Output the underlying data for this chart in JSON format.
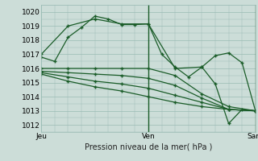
{
  "xlabel": "Pression niveau de la mer( hPa )",
  "ylim": [
    1011.5,
    1020.5
  ],
  "xlim": [
    0,
    48
  ],
  "xtick_positions": [
    0,
    24,
    48
  ],
  "xtick_labels": [
    "Jeu",
    "Ven",
    "Sam"
  ],
  "ytick_positions": [
    1012,
    1013,
    1014,
    1015,
    1016,
    1017,
    1018,
    1019,
    1020
  ],
  "bg_color": "#ccddd8",
  "grid_color": "#99bbb4",
  "line_color": "#1a5c28",
  "lines": [
    {
      "x": [
        0,
        3,
        6,
        9,
        12,
        15,
        18,
        21,
        24,
        27,
        30,
        33,
        36,
        39,
        42,
        45,
        48
      ],
      "y": [
        1016.8,
        1016.5,
        1018.2,
        1018.9,
        1019.7,
        1019.5,
        1019.1,
        1019.1,
        1019.15,
        1017.0,
        1016.1,
        1015.4,
        1016.1,
        1014.9,
        1012.1,
        1013.1,
        1013.0
      ],
      "marker": "+"
    },
    {
      "x": [
        0,
        6,
        12,
        18,
        24,
        30,
        36,
        39,
        42,
        45,
        48
      ],
      "y": [
        1017.0,
        1019.0,
        1019.5,
        1019.15,
        1019.15,
        1016.0,
        1016.1,
        1016.9,
        1017.1,
        1016.4,
        1013.0
      ],
      "marker": "+"
    },
    {
      "x": [
        0,
        6,
        12,
        18,
        24,
        30,
        36,
        42,
        48
      ],
      "y": [
        1016.0,
        1016.0,
        1016.0,
        1016.0,
        1016.0,
        1015.5,
        1014.2,
        1013.3,
        1013.0
      ],
      "marker": "+"
    },
    {
      "x": [
        0,
        6,
        12,
        18,
        24,
        30,
        36,
        42,
        48
      ],
      "y": [
        1015.8,
        1015.7,
        1015.6,
        1015.5,
        1015.3,
        1014.8,
        1013.9,
        1013.1,
        1013.0
      ],
      "marker": "+"
    },
    {
      "x": [
        0,
        6,
        12,
        18,
        24,
        30,
        36,
        42,
        48
      ],
      "y": [
        1015.7,
        1015.4,
        1015.1,
        1014.9,
        1014.6,
        1014.1,
        1013.6,
        1013.1,
        1013.0
      ],
      "marker": "+"
    },
    {
      "x": [
        0,
        6,
        12,
        18,
        24,
        30,
        36,
        42,
        48
      ],
      "y": [
        1015.6,
        1015.1,
        1014.7,
        1014.4,
        1014.0,
        1013.6,
        1013.3,
        1013.1,
        1013.0
      ],
      "marker": "+"
    }
  ],
  "vline_x": 24,
  "vline_color": "#1a5c28",
  "fontsize": 7,
  "tick_fontsize": 6.5,
  "marker_size": 3.5,
  "line_width": 0.9
}
